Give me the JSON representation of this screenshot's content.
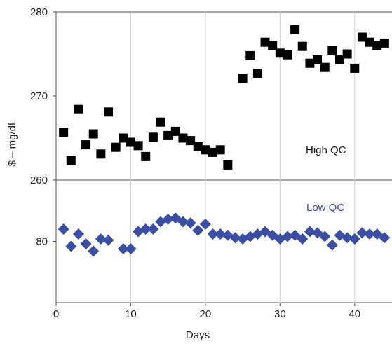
{
  "chart_data": {
    "type": "scatter",
    "xlabel": "Days",
    "ylabel": "$ – mg/dL",
    "xlim": [
      0,
      45
    ],
    "x_ticks": [
      "0",
      "10",
      "20",
      "30",
      "40"
    ],
    "x_tick_values": [
      0,
      10,
      20,
      30,
      40
    ],
    "panels": [
      {
        "ylim": [
          260,
          280
        ],
        "y_ticks": [
          "260",
          "270",
          "280"
        ],
        "y_tick_values": [
          260,
          270,
          280
        ],
        "annotation": "High QC",
        "series": [
          {
            "color": "#000000",
            "marker": "square",
            "points": [
              [
                1,
                265.7
              ],
              [
                2,
                262.3
              ],
              [
                3,
                268.4
              ],
              [
                4,
                264.2
              ],
              [
                5,
                265.5
              ],
              [
                6,
                263.1
              ],
              [
                7,
                268.1
              ],
              [
                8,
                263.9
              ],
              [
                9,
                265.0
              ],
              [
                10,
                264.5
              ],
              [
                11,
                264.1
              ],
              [
                12,
                262.8
              ],
              [
                13,
                265.1
              ],
              [
                14,
                266.9
              ],
              [
                15,
                265.3
              ],
              [
                16,
                265.8
              ],
              [
                17,
                265.0
              ],
              [
                18,
                264.7
              ],
              [
                19,
                264.0
              ],
              [
                20,
                263.6
              ],
              [
                21,
                263.3
              ],
              [
                22,
                263.6
              ],
              [
                23,
                261.8
              ],
              [
                25,
                272.1
              ],
              [
                26,
                274.8
              ],
              [
                27,
                272.7
              ],
              [
                28,
                276.4
              ],
              [
                29,
                276.0
              ],
              [
                30,
                275.1
              ],
              [
                31,
                274.9
              ],
              [
                32,
                277.9
              ],
              [
                33,
                275.9
              ],
              [
                34,
                273.9
              ],
              [
                35,
                274.3
              ],
              [
                36,
                273.4
              ],
              [
                37,
                275.4
              ],
              [
                38,
                274.3
              ],
              [
                39,
                275.0
              ],
              [
                40,
                273.3
              ],
              [
                41,
                277.0
              ],
              [
                42,
                276.4
              ],
              [
                43,
                276.0
              ],
              [
                44,
                276.3
              ]
            ]
          }
        ]
      },
      {
        "ylim": [
          75,
          85
        ],
        "y_ticks": [
          "80"
        ],
        "y_tick_values": [
          80
        ],
        "annotation": "Low QC",
        "series": [
          {
            "color": "#3a4ea3",
            "marker": "diamond",
            "points": [
              [
                1,
                81.0
              ],
              [
                2,
                79.6
              ],
              [
                3,
                80.6
              ],
              [
                4,
                79.8
              ],
              [
                5,
                79.2
              ],
              [
                6,
                80.2
              ],
              [
                7,
                80.1
              ],
              [
                9,
                79.4
              ],
              [
                10,
                79.4
              ],
              [
                11,
                80.8
              ],
              [
                12,
                81.0
              ],
              [
                13,
                81.0
              ],
              [
                14,
                81.6
              ],
              [
                15,
                81.8
              ],
              [
                16,
                81.9
              ],
              [
                17,
                81.6
              ],
              [
                18,
                81.5
              ],
              [
                19,
                80.9
              ],
              [
                20,
                81.4
              ],
              [
                21,
                80.6
              ],
              [
                22,
                80.6
              ],
              [
                23,
                80.5
              ],
              [
                24,
                80.3
              ],
              [
                25,
                80.2
              ],
              [
                26,
                80.4
              ],
              [
                27,
                80.6
              ],
              [
                28,
                80.8
              ],
              [
                29,
                80.5
              ],
              [
                30,
                80.2
              ],
              [
                31,
                80.4
              ],
              [
                32,
                80.5
              ],
              [
                33,
                80.2
              ],
              [
                34,
                80.8
              ],
              [
                35,
                80.7
              ],
              [
                36,
                80.4
              ],
              [
                37,
                79.7
              ],
              [
                38,
                80.5
              ],
              [
                39,
                80.3
              ],
              [
                40,
                80.2
              ],
              [
                41,
                80.7
              ],
              [
                42,
                80.6
              ],
              [
                43,
                80.6
              ],
              [
                44,
                80.3
              ]
            ]
          }
        ]
      }
    ]
  }
}
